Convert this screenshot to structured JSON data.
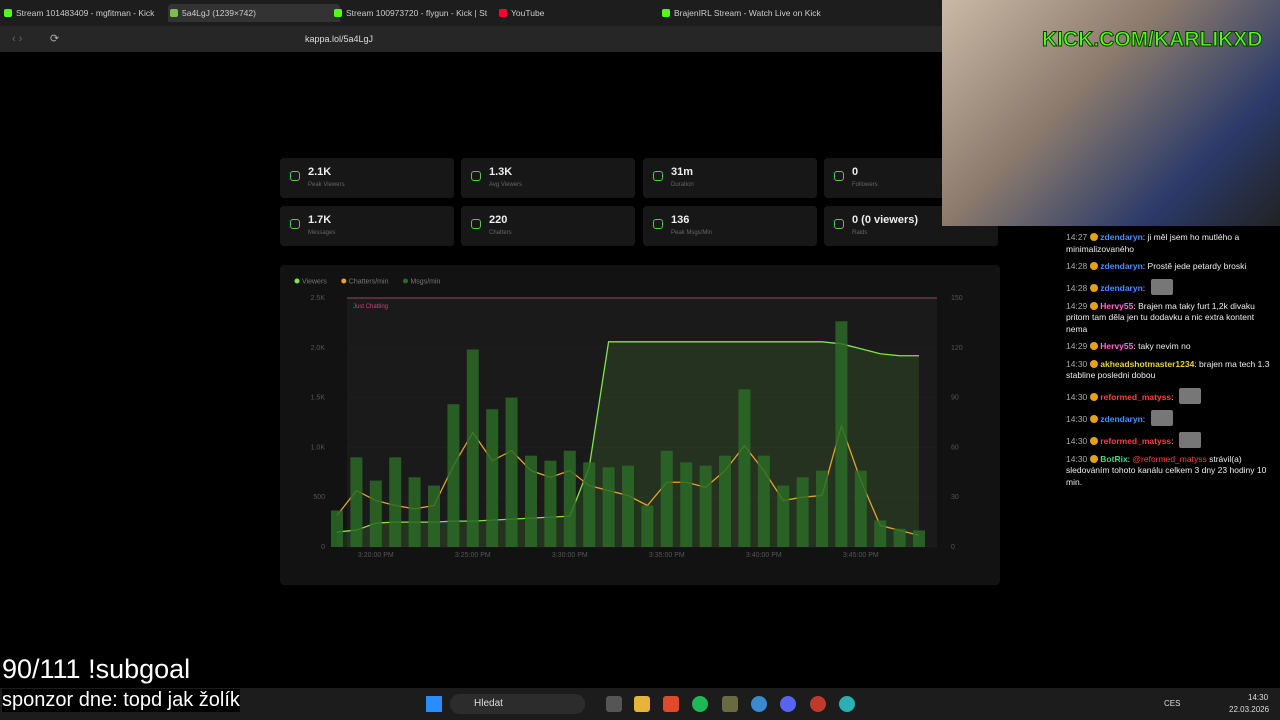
{
  "browser": {
    "tabs": [
      "Stream 101483409 - mgfitman - Kick",
      "5a4LgJ (1239×742)",
      "Stream 100973720 - flygun - Kick | St",
      "YouTube",
      "BrajenIRL Stream - Watch Live on Kick"
    ],
    "url": "kappa.lol/5a4LgJ"
  },
  "stats": [
    {
      "value": "2.1K",
      "label": "Peak Viewers"
    },
    {
      "value": "1.3K",
      "label": "Avg Viewers"
    },
    {
      "value": "31m",
      "label": "Duration"
    },
    {
      "value": "0",
      "label": "Followers"
    },
    {
      "value": "1.7K",
      "label": "Messages"
    },
    {
      "value": "220",
      "label": "Chatters"
    },
    {
      "value": "136",
      "label": "Peak Msgs/Min"
    },
    {
      "value": "0 (0 viewers)",
      "label": "Raids"
    }
  ],
  "chart": {
    "type": "bar_line",
    "annotation": "Just Chatting",
    "categories": [
      null,
      null,
      "3:20:00 PM",
      null,
      null,
      null,
      null,
      "3:25:00 PM",
      null,
      null,
      null,
      null,
      "3:30:00 PM",
      null,
      null,
      null,
      null,
      "3:35:00 PM",
      null,
      null,
      null,
      null,
      "3:40:00 PM",
      null,
      null,
      null,
      null,
      "3:45:00 PM",
      null,
      null,
      null
    ],
    "series": [
      {
        "name": "Viewers",
        "color": "#7ee64a",
        "kind": "area",
        "axis": "y",
        "values": [
          150,
          170,
          240,
          250,
          250,
          250,
          260,
          260,
          270,
          280,
          290,
          300,
          310,
          800,
          2060,
          2060,
          2060,
          2060,
          2060,
          2060,
          2060,
          2060,
          2060,
          2060,
          2060,
          2060,
          2040,
          1990,
          1940,
          1920,
          1920
        ]
      },
      {
        "name": "Chatters/min",
        "color": "#e0a52e",
        "kind": "line",
        "axis": "y2",
        "values": [
          19,
          34,
          28,
          25,
          23,
          25,
          49,
          69,
          52,
          58,
          46,
          42,
          46,
          37,
          34,
          31,
          25,
          39,
          39,
          36,
          46,
          61,
          46,
          28,
          30,
          31,
          73,
          40,
          13,
          10,
          7
        ]
      },
      {
        "name": "Msgs/min",
        "color": "#2c6a26",
        "kind": "bar",
        "axis": "y2",
        "values": [
          22,
          54,
          40,
          54,
          42,
          37,
          86,
          119,
          83,
          90,
          55,
          52,
          58,
          51,
          48,
          49,
          25,
          58,
          51,
          49,
          55,
          95,
          55,
          37,
          42,
          46,
          136,
          46,
          16,
          11,
          10
        ]
      }
    ],
    "ylim": [
      0,
      2500
    ],
    "yticks": [
      0,
      500,
      {
        "value": 1000,
        "label": "1.0K"
      },
      {
        "value": 1500,
        "label": "1.5K"
      },
      {
        "value": 2000,
        "label": "2.0K"
      },
      {
        "value": 2500,
        "label": "2.5K"
      }
    ],
    "y2lim": [
      0,
      150
    ],
    "y2ticks": [
      0,
      30,
      60,
      90,
      120,
      150
    ]
  },
  "overlay": {
    "channel": "KICK.COM/KARLIKXD",
    "subgoal": "90/111 !subgoal",
    "sponsor": "sponzor dne: topd jak žolík"
  },
  "chat": [
    {
      "time": "14:27",
      "user": "zdendaryn",
      "color": "#4d8dff",
      "text": "ji měl jsem ho mutlého a minimalizovaného"
    },
    {
      "time": "14:28",
      "user": "zdendaryn",
      "color": "#4d8dff",
      "text": "Prostě jede petardy broski"
    },
    {
      "time": "14:28",
      "user": "zdendaryn",
      "color": "#4d8dff"
    },
    {
      "time": "14:29",
      "user": "Hervy55",
      "color": "#ff6ed0",
      "text": "Brajen ma taky furt 1,2k divaku pritom tam děla jen tu dodavku a nic extra kontent nema"
    },
    {
      "time": "14:29",
      "user": "Hervy55",
      "color": "#ff6ed0",
      "text": "taky nevim no"
    },
    {
      "time": "14:30",
      "user": "akheadshotmaster1234",
      "color": "#e8d13a",
      "text": "brajen ma tech 1.3 stabline posledni dobou"
    },
    {
      "time": "14:30",
      "user": "reformed_matyss",
      "color": "#ff4040"
    },
    {
      "time": "14:30",
      "user": "zdendaryn",
      "color": "#4d8dff"
    },
    {
      "time": "14:30",
      "user": "reformed_matyss",
      "color": "#ff4040"
    },
    {
      "time": "14:30",
      "user": "BotRix",
      "color": "#3ddc84",
      "mention": "@reformed_matyss",
      "text": "strávil(a) sledováním tohoto kanálu celkem 3 dny 23 hodiny 10 min."
    }
  ],
  "taskbar": {
    "search": "Hledat",
    "language": "CES",
    "time": "14:30",
    "date": "22.03.2026"
  }
}
